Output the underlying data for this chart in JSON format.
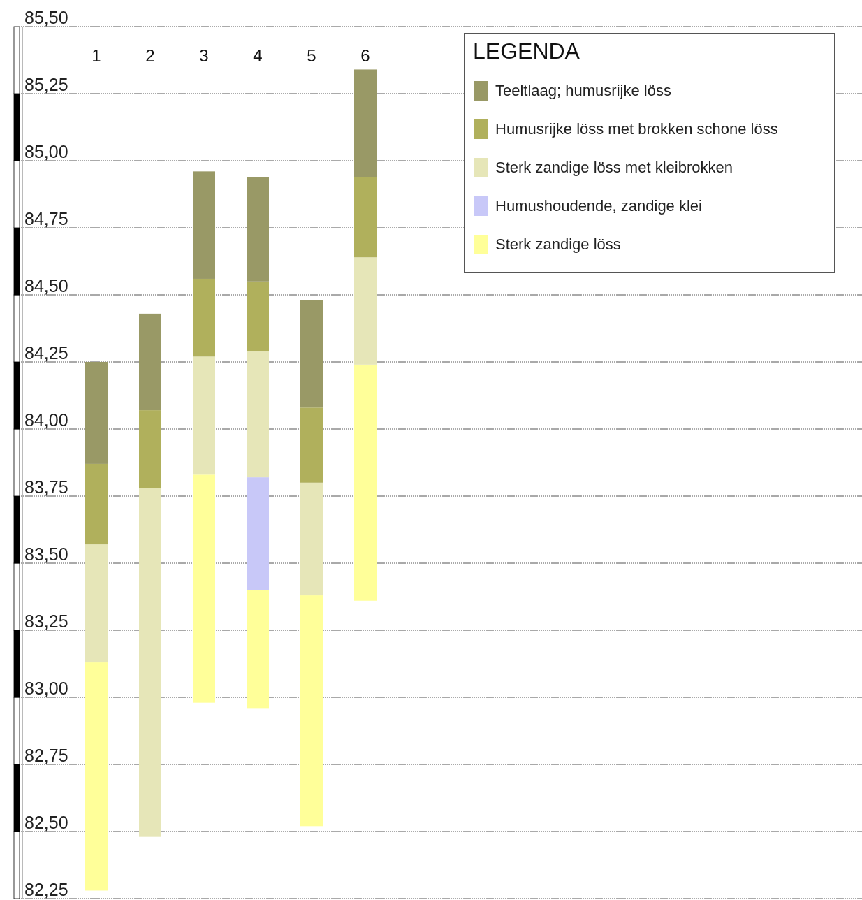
{
  "chart_data": {
    "type": "bar",
    "legend_title": "LEGENDA",
    "legend": "top right",
    "grid": "y",
    "categories": [
      "1",
      "2",
      "3",
      "4",
      "5",
      "6"
    ],
    "series": [
      {
        "name": "Sterk zandige löss",
        "color": "#ffff99",
        "base": [
          82.28,
          null,
          82.98,
          82.96,
          82.52,
          83.36
        ],
        "values": [
          0.85,
          null,
          0.85,
          0.44,
          0.86,
          0.88
        ]
      },
      {
        "name": "Humushoudende, zandige klei",
        "color": "#c8c8f8",
        "base": [
          null,
          null,
          null,
          83.4,
          null,
          null
        ],
        "values": [
          null,
          null,
          null,
          0.42,
          null,
          null
        ]
      },
      {
        "name": "Sterk zandige löss met kleibrokken",
        "color": "#e6e6b8",
        "base": [
          83.13,
          82.48,
          83.83,
          83.82,
          83.38,
          84.24
        ],
        "values": [
          0.44,
          1.3,
          0.44,
          0.47,
          0.42,
          0.4
        ]
      },
      {
        "name": "Humusrijke löss met brokken schone löss",
        "color": "#b0b05c",
        "base": [
          83.57,
          83.78,
          84.27,
          84.29,
          83.8,
          84.64
        ],
        "values": [
          0.3,
          0.29,
          0.29,
          0.26,
          0.28,
          0.3
        ]
      },
      {
        "name": "Teeltlaag; humusrijke löss",
        "color": "#999966",
        "base": [
          83.87,
          84.07,
          84.56,
          84.55,
          84.08,
          84.94
        ],
        "values": [
          0.38,
          0.36,
          0.4,
          0.39,
          0.4,
          0.4
        ]
      }
    ],
    "ylim": [
      82.25,
      85.5
    ],
    "yticks": [
      {
        "value": 82.25,
        "label": "82,25"
      },
      {
        "value": 82.5,
        "label": "82,50"
      },
      {
        "value": 82.75,
        "label": "82,75"
      },
      {
        "value": 83.0,
        "label": "83,00"
      },
      {
        "value": 83.25,
        "label": "83,25"
      },
      {
        "value": 83.5,
        "label": "83,50"
      },
      {
        "value": 83.75,
        "label": "83,75"
      },
      {
        "value": 84.0,
        "label": "84,00"
      },
      {
        "value": 84.25,
        "label": "84,25"
      },
      {
        "value": 84.5,
        "label": "84,50"
      },
      {
        "value": 84.75,
        "label": "84,75"
      },
      {
        "value": 85.0,
        "label": "85,00"
      },
      {
        "value": 85.25,
        "label": "85,25"
      },
      {
        "value": 85.5,
        "label": "85,50"
      }
    ]
  }
}
